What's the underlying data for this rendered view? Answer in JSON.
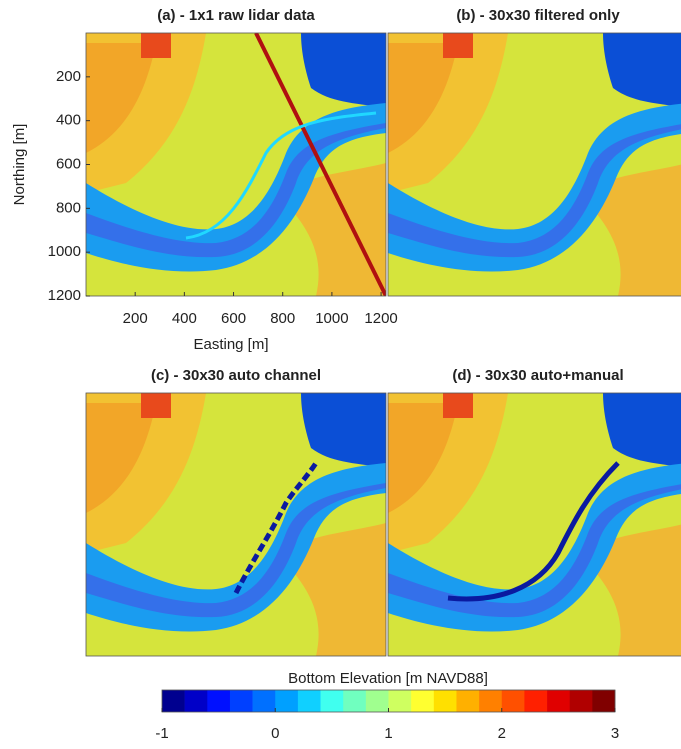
{
  "chart_data": [
    {
      "type": "heatmap",
      "title": "(a) - 1x1 raw lidar data",
      "xlabel": "Easting [m]",
      "ylabel": "Northing [m]",
      "xlim": [
        0,
        1220
      ],
      "ylim": [
        0,
        1200
      ],
      "y_reversed": true,
      "xticks": [
        200,
        400,
        600,
        800,
        1000,
        1200
      ],
      "yticks": [
        200,
        400,
        600,
        800,
        1000,
        1200
      ],
      "style": "raw"
    },
    {
      "type": "heatmap",
      "title": "(b) - 30x30 filtered only",
      "style": "filtered"
    },
    {
      "type": "heatmap",
      "title": "(c) - 30x30 auto channel",
      "style": "auto"
    },
    {
      "type": "heatmap",
      "title": "(d) - 30x30 auto+manual",
      "style": "manual"
    },
    {
      "type": "colorbar",
      "label": "Bottom Elevation [m NAVD88]",
      "lim": [
        -1,
        3
      ],
      "ticks": [
        -1,
        0,
        1,
        2,
        3
      ],
      "colors": [
        "#00008f",
        "#0000c8",
        "#0010ff",
        "#0040ff",
        "#0070ff",
        "#00a0ff",
        "#10d0ff",
        "#40ffef",
        "#70ffbf",
        "#a0ff8f",
        "#cfff60",
        "#ffff30",
        "#ffe000",
        "#ffb000",
        "#ff8000",
        "#ff5000",
        "#ff2000",
        "#e00000",
        "#b00000",
        "#800000"
      ]
    }
  ]
}
